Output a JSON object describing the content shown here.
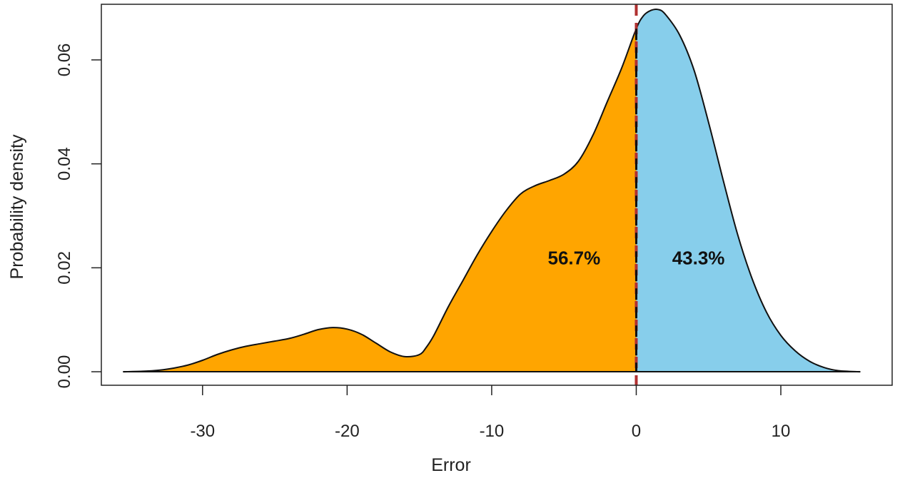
{
  "chart_data": {
    "type": "area",
    "title": "",
    "xlabel": "Error",
    "ylabel": "Probability density",
    "xlim": [
      -37,
      17.7
    ],
    "ylim": [
      -0.0026,
      0.0707
    ],
    "x_ticks": [
      -30,
      -20,
      -10,
      0,
      10
    ],
    "x_tick_labels": [
      "-30",
      "-20",
      "-10",
      "0",
      "10"
    ],
    "y_ticks": [
      0.0,
      0.02,
      0.04,
      0.06
    ],
    "y_tick_labels": [
      "0.00",
      "0.02",
      "0.04",
      "0.06"
    ],
    "grid": false,
    "threshold": 0,
    "colors": {
      "negative": "#FFA500",
      "positive": "#87CEEB",
      "curve": "#111111",
      "threshold_line": "#B03030",
      "threshold_inner": "#111111"
    },
    "regions": [
      {
        "name": "negative",
        "label": "56.7%",
        "label_x": -4.3,
        "label_y": 0.0219
      },
      {
        "name": "positive",
        "label": "43.3%",
        "label_x": 4.3,
        "label_y": 0.0219
      }
    ],
    "density_points": [
      [
        -35.5,
        0.0
      ],
      [
        -34.0,
        0.0001
      ],
      [
        -33.0,
        0.0003
      ],
      [
        -32.0,
        0.0007
      ],
      [
        -31.0,
        0.0013
      ],
      [
        -30.0,
        0.0022
      ],
      [
        -29.0,
        0.0033
      ],
      [
        -28.0,
        0.0042
      ],
      [
        -27.0,
        0.0049
      ],
      [
        -26.0,
        0.0054
      ],
      [
        -25.0,
        0.0059
      ],
      [
        -24.0,
        0.0064
      ],
      [
        -23.0,
        0.0072
      ],
      [
        -22.0,
        0.0081
      ],
      [
        -21.0,
        0.0085
      ],
      [
        -20.0,
        0.0082
      ],
      [
        -19.0,
        0.0072
      ],
      [
        -18.0,
        0.0055
      ],
      [
        -17.0,
        0.0038
      ],
      [
        -16.0,
        0.0029
      ],
      [
        -15.0,
        0.0033
      ],
      [
        -14.5,
        0.0048
      ],
      [
        -14.0,
        0.007
      ],
      [
        -13.0,
        0.0125
      ],
      [
        -12.0,
        0.0175
      ],
      [
        -11.0,
        0.0225
      ],
      [
        -10.0,
        0.027
      ],
      [
        -9.0,
        0.031
      ],
      [
        -8.0,
        0.0342
      ],
      [
        -7.0,
        0.0358
      ],
      [
        -6.0,
        0.0368
      ],
      [
        -5.0,
        0.038
      ],
      [
        -4.0,
        0.0405
      ],
      [
        -3.0,
        0.0455
      ],
      [
        -2.0,
        0.052
      ],
      [
        -1.0,
        0.0585
      ],
      [
        0.0,
        0.066
      ],
      [
        0.5,
        0.0685
      ],
      [
        1.0,
        0.0695
      ],
      [
        1.5,
        0.0697
      ],
      [
        2.0,
        0.0688
      ],
      [
        3.0,
        0.0648
      ],
      [
        4.0,
        0.058
      ],
      [
        5.0,
        0.048
      ],
      [
        6.0,
        0.037
      ],
      [
        7.0,
        0.0265
      ],
      [
        8.0,
        0.018
      ],
      [
        9.0,
        0.0115
      ],
      [
        10.0,
        0.007
      ],
      [
        11.0,
        0.004
      ],
      [
        12.0,
        0.002
      ],
      [
        13.0,
        0.0008
      ],
      [
        14.0,
        0.0002
      ],
      [
        15.5,
        0.0
      ]
    ]
  }
}
